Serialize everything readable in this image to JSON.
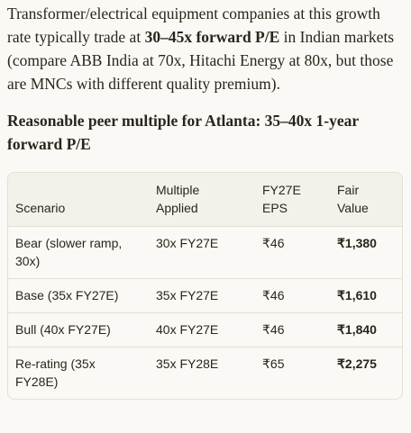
{
  "paragraph": {
    "segments": [
      "Transformer/electrical equipment companies at this growth rate typically trade at ",
      "30–45x forward P/E",
      " in Indian markets (compare ABB India at 70x, Hitachi Energy at 80x, but those are MNCs with different quality premium)."
    ]
  },
  "heading": "Reasonable peer multiple for Atlanta: 35–40x 1-year forward P/E",
  "table": {
    "header": [
      "Scenario",
      "Multiple Applied",
      "FY27E EPS",
      "Fair Value"
    ],
    "rows": [
      [
        "Bear (slower ramp, 30x)",
        "30x FY27E",
        "₹46",
        "₹1,380"
      ],
      [
        "Base (35x FY27E)",
        "35x FY27E",
        "₹46",
        "₹1,610"
      ],
      [
        "Bull (40x FY27E)",
        "40x FY27E",
        "₹46",
        "₹1,840"
      ],
      [
        "Re-rating (35x FY28E)",
        "35x FY28E",
        "₹65",
        "₹2,275"
      ]
    ]
  }
}
